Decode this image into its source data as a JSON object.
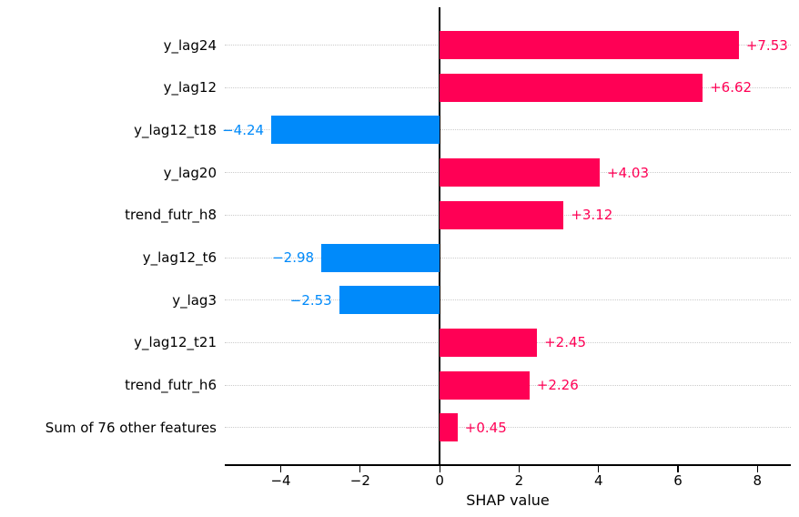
{
  "colors": {
    "positive_bar": "#ff0055",
    "negative_bar": "#008afa",
    "gridline": "#cccccc",
    "axis": "#000000",
    "text": "#000000"
  },
  "chart_data": {
    "type": "bar",
    "orientation": "horizontal",
    "title": "",
    "xlabel": "SHAP value",
    "ylabel": "",
    "grid": "horizontal-dotted",
    "zero_line": true,
    "legend": "none",
    "xlim": [
      -5.41,
      8.84
    ],
    "xticks": [
      -4,
      -2,
      0,
      2,
      4,
      6,
      8
    ],
    "xtick_labels": [
      "−4",
      "−2",
      "0",
      "2",
      "4",
      "6",
      "8"
    ],
    "categories": [
      "y_lag24",
      "y_lag12",
      "y_lag12_t18",
      "y_lag20",
      "trend_futr_h8",
      "y_lag12_t6",
      "y_lag3",
      "y_lag12_t21",
      "trend_futr_h6",
      "Sum of 76 other features"
    ],
    "values": [
      7.53,
      6.62,
      -4.24,
      4.03,
      3.12,
      -2.98,
      -2.53,
      2.45,
      2.26,
      0.45
    ],
    "value_labels": [
      "+7.53",
      "+6.62",
      "−4.24",
      "+4.03",
      "+3.12",
      "−2.98",
      "−2.53",
      "+2.45",
      "+2.26",
      "+0.45"
    ]
  }
}
